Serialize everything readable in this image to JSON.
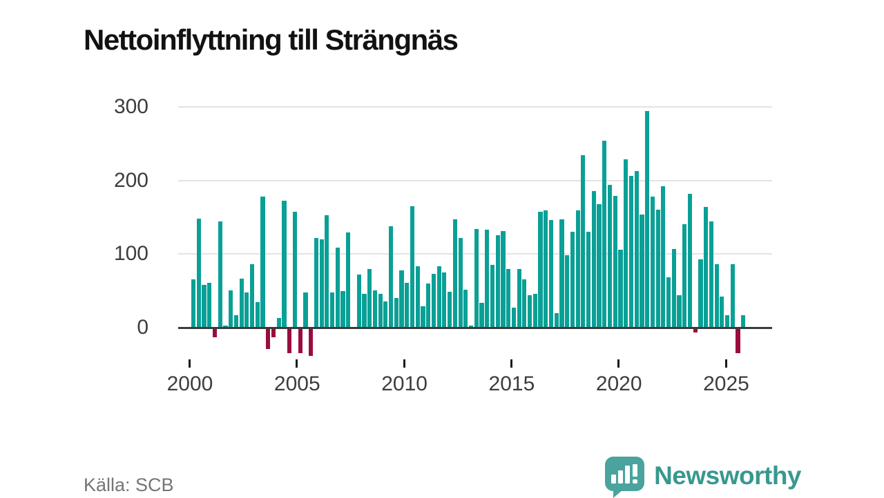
{
  "title": "Nettoinflyttning till Strängnäs",
  "source": "Källa: SCB",
  "branding": {
    "logo_text": "Newsworthy",
    "logo_icon": "bar-chart-speech-bubble-icon"
  },
  "colors": {
    "positive_bar": "#0aa096",
    "negative_bar": "#9b0c3e",
    "grid": "#e3e3e3",
    "axis": "#3a3a3a",
    "tick_text": "#3d3d3d",
    "title_text": "#121212",
    "source_text": "#757575",
    "brand": "#38988f"
  },
  "chart_data": {
    "type": "bar",
    "title": "Nettoinflyttning till Strängnäs",
    "xlabel": "",
    "ylabel": "",
    "period": "quarterly",
    "x_start": "2000 Q1",
    "x_end": "2025 Q4",
    "start_year": 2000,
    "x_ticks": [
      2000,
      2005,
      2010,
      2015,
      2020,
      2025
    ],
    "y_ticks": [
      0,
      100,
      200,
      300
    ],
    "ylim": [
      -50,
      310
    ],
    "grid": true,
    "legend": false,
    "values": [
      66,
      148,
      58,
      61,
      -13,
      144,
      3,
      51,
      17,
      67,
      48,
      86,
      35,
      178,
      -29,
      -13,
      13,
      172,
      -35,
      157,
      -35,
      48,
      -38,
      122,
      120,
      153,
      48,
      109,
      50,
      129,
      1,
      72,
      46,
      80,
      51,
      46,
      36,
      138,
      40,
      78,
      61,
      165,
      83,
      29,
      60,
      73,
      83,
      75,
      49,
      147,
      122,
      52,
      3,
      134,
      34,
      133,
      85,
      126,
      131,
      80,
      27,
      80,
      66,
      44,
      46,
      157,
      159,
      146,
      20,
      147,
      98,
      130,
      159,
      234,
      130,
      186,
      168,
      254,
      194,
      179,
      106,
      229,
      206,
      213,
      154,
      294,
      178,
      160,
      192,
      68,
      107,
      44,
      141,
      182,
      -7,
      93,
      164,
      144,
      86,
      42,
      17,
      86,
      -35,
      17
    ]
  }
}
